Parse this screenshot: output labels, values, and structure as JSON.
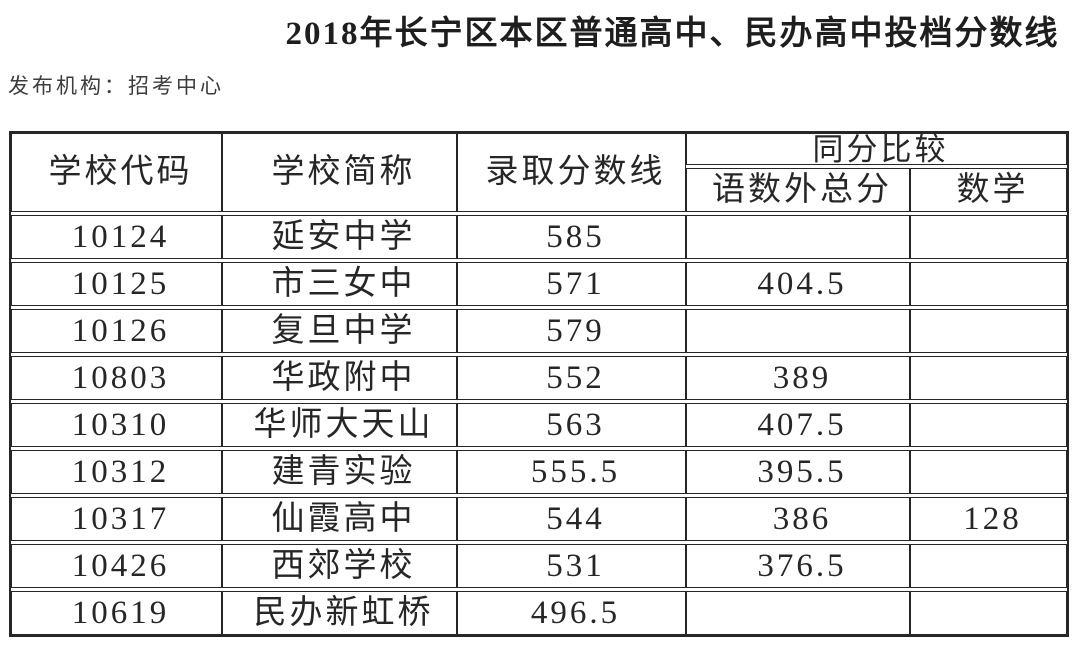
{
  "page": {
    "title": "2018年长宁区本区普通高中、民办高中投档分数线",
    "publisher": "发布机构：招考中心"
  },
  "table": {
    "headers": {
      "school_code": "学校代码",
      "school_name": "学校简称",
      "admission_line": "录取分数线",
      "tie_break": "同分比较",
      "cme_total": "语数外总分",
      "math": "数学"
    },
    "rows": [
      {
        "code": "10124",
        "name": "延安中学",
        "line": "585",
        "total": "",
        "math": ""
      },
      {
        "code": "10125",
        "name": "市三女中",
        "line": "571",
        "total": "404.5",
        "math": ""
      },
      {
        "code": "10126",
        "name": "复旦中学",
        "line": "579",
        "total": "",
        "math": ""
      },
      {
        "code": "10803",
        "name": "华政附中",
        "line": "552",
        "total": "389",
        "math": ""
      },
      {
        "code": "10310",
        "name": "华师大天山",
        "line": "563",
        "total": "407.5",
        "math": ""
      },
      {
        "code": "10312",
        "name": "建青实验",
        "line": "555.5",
        "total": "395.5",
        "math": ""
      },
      {
        "code": "10317",
        "name": "仙霞高中",
        "line": "544",
        "total": "386",
        "math": "128"
      },
      {
        "code": "10426",
        "name": "西郊学校",
        "line": "531",
        "total": "376.5",
        "math": ""
      },
      {
        "code": "10619",
        "name": "民办新虹桥",
        "line": "496.5",
        "total": "",
        "math": ""
      }
    ]
  },
  "colors": {
    "background": "#ffffff",
    "border": "#262626",
    "text": "#262626",
    "publisher_text": "#3d3d3d"
  }
}
